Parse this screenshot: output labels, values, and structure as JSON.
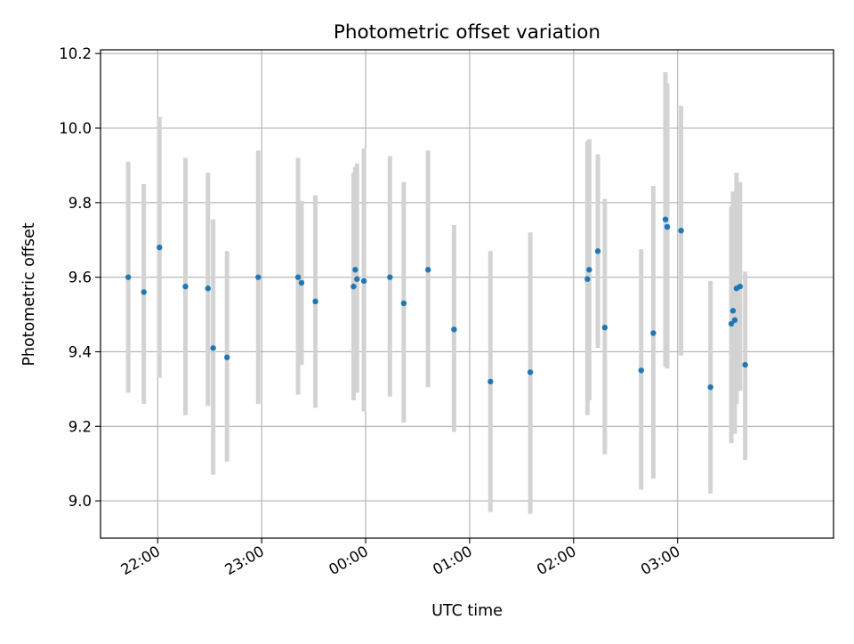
{
  "chart_data": {
    "type": "scatter",
    "title": "Photometric offset variation",
    "xlabel": "UTC time",
    "ylabel": "Photometric offset",
    "xlim": [
      "21:27",
      "04:30"
    ],
    "ylim": [
      8.9,
      10.21
    ],
    "x_ticks": [
      "22:00",
      "23:00",
      "00:00",
      "01:00",
      "02:00",
      "03:00"
    ],
    "y_ticks": [
      "9.0",
      "9.2",
      "9.4",
      "9.6",
      "9.8",
      "10.0",
      "10.2"
    ],
    "grid": true,
    "colors": {
      "point": "#1f77b4",
      "errorbar": "#d3d3d3",
      "grid": "#b0b0b0"
    },
    "series": [
      {
        "points": [
          {
            "x": "21:43",
            "y": 9.6,
            "ylo": 9.29,
            "yhi": 9.91
          },
          {
            "x": "21:52",
            "y": 9.56,
            "ylo": 9.26,
            "yhi": 9.85
          },
          {
            "x": "22:01",
            "y": 9.68,
            "ylo": 9.33,
            "yhi": 10.03
          },
          {
            "x": "22:16",
            "y": 9.575,
            "ylo": 9.23,
            "yhi": 9.92
          },
          {
            "x": "22:29",
            "y": 9.57,
            "ylo": 9.255,
            "yhi": 9.88
          },
          {
            "x": "22:32",
            "y": 9.41,
            "ylo": 9.07,
            "yhi": 9.755
          },
          {
            "x": "22:40",
            "y": 9.385,
            "ylo": 9.105,
            "yhi": 9.67
          },
          {
            "x": "22:58",
            "y": 9.6,
            "ylo": 9.26,
            "yhi": 9.94
          },
          {
            "x": "23:21",
            "y": 9.6,
            "ylo": 9.285,
            "yhi": 9.92
          },
          {
            "x": "23:23",
            "y": 9.585,
            "ylo": 9.365,
            "yhi": 9.805
          },
          {
            "x": "23:31",
            "y": 9.535,
            "ylo": 9.25,
            "yhi": 9.82
          },
          {
            "x": "23:53",
            "y": 9.575,
            "ylo": 9.27,
            "yhi": 9.88
          },
          {
            "x": "23:54",
            "y": 9.62,
            "ylo": 9.345,
            "yhi": 9.895
          },
          {
            "x": "23:55",
            "y": 9.595,
            "ylo": 9.29,
            "yhi": 9.905
          },
          {
            "x": "23:59",
            "y": 9.59,
            "ylo": 9.24,
            "yhi": 9.945
          },
          {
            "x": "00:14",
            "y": 9.6,
            "ylo": 9.28,
            "yhi": 9.925
          },
          {
            "x": "00:22",
            "y": 9.53,
            "ylo": 9.21,
            "yhi": 9.855
          },
          {
            "x": "00:36",
            "y": 9.62,
            "ylo": 9.305,
            "yhi": 9.94
          },
          {
            "x": "00:51",
            "y": 9.46,
            "ylo": 9.185,
            "yhi": 9.74
          },
          {
            "x": "01:12",
            "y": 9.32,
            "ylo": 8.97,
            "yhi": 9.67
          },
          {
            "x": "01:35",
            "y": 9.345,
            "ylo": 8.965,
            "yhi": 9.72
          },
          {
            "x": "02:08",
            "y": 9.595,
            "ylo": 9.23,
            "yhi": 9.965
          },
          {
            "x": "02:09",
            "y": 9.62,
            "ylo": 9.27,
            "yhi": 9.97
          },
          {
            "x": "02:14",
            "y": 9.67,
            "ylo": 9.41,
            "yhi": 9.93
          },
          {
            "x": "02:18",
            "y": 9.465,
            "ylo": 9.125,
            "yhi": 9.81
          },
          {
            "x": "02:39",
            "y": 9.35,
            "ylo": 9.03,
            "yhi": 9.675
          },
          {
            "x": "02:46",
            "y": 9.45,
            "ylo": 9.06,
            "yhi": 9.845
          },
          {
            "x": "02:53",
            "y": 9.755,
            "ylo": 9.36,
            "yhi": 10.15
          },
          {
            "x": "02:54",
            "y": 9.735,
            "ylo": 9.355,
            "yhi": 10.12
          },
          {
            "x": "03:02",
            "y": 9.725,
            "ylo": 9.39,
            "yhi": 10.06
          },
          {
            "x": "03:19",
            "y": 9.305,
            "ylo": 9.02,
            "yhi": 9.59
          },
          {
            "x": "03:31",
            "y": 9.475,
            "ylo": 9.155,
            "yhi": 9.79
          },
          {
            "x": "03:32",
            "y": 9.51,
            "ylo": 9.19,
            "yhi": 9.83
          },
          {
            "x": "03:33",
            "y": 9.485,
            "ylo": 9.18,
            "yhi": 9.79
          },
          {
            "x": "03:34",
            "y": 9.57,
            "ylo": 9.26,
            "yhi": 9.88
          },
          {
            "x": "03:36",
            "y": 9.575,
            "ylo": 9.295,
            "yhi": 9.855
          },
          {
            "x": "03:39",
            "y": 9.365,
            "ylo": 9.11,
            "yhi": 9.615
          }
        ]
      }
    ]
  }
}
